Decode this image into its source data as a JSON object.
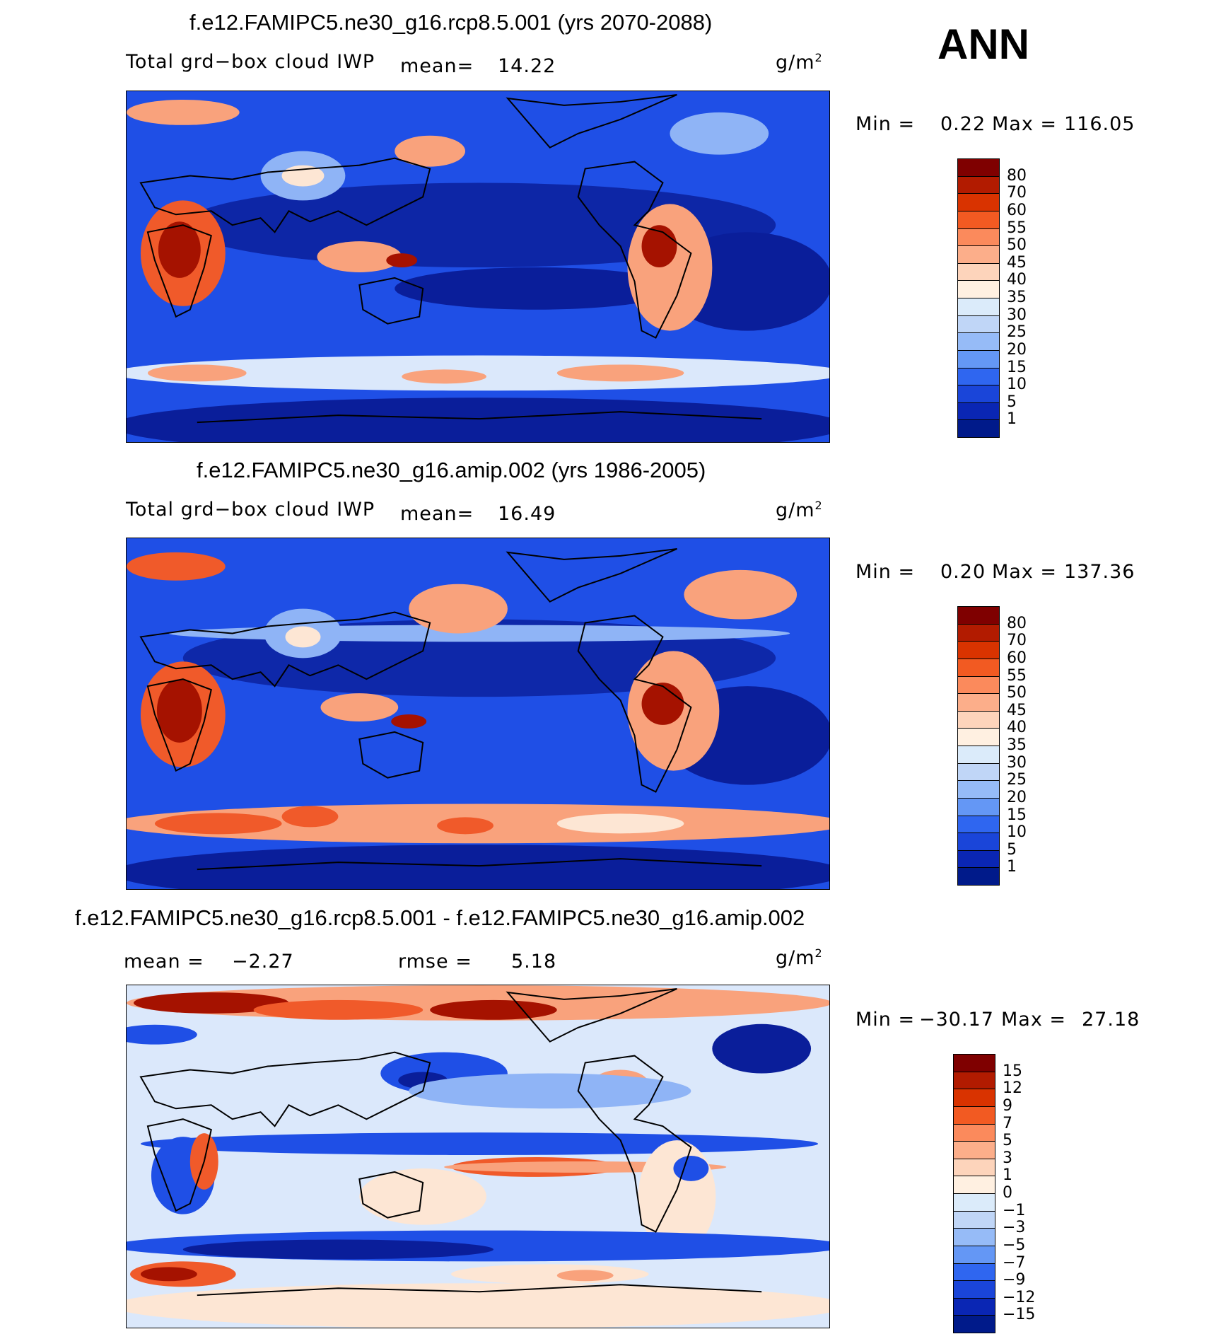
{
  "season": "ANN",
  "panels": [
    {
      "id": "rcp85",
      "title": "f.e12.FAMIPC5.ne30_g16.rcp8.5.001 (yrs 2070-2088)",
      "variable": "Total grd−box cloud IWP",
      "mean_label": "mean=",
      "mean_value": "14.22",
      "units": "g/m",
      "units_exp": "2",
      "min_label": "Min =",
      "min_value": "0.22",
      "max_label": "Max =",
      "max_value": "116.05",
      "colorbar": {
        "labels": [
          "80",
          "70",
          "60",
          "55",
          "50",
          "45",
          "40",
          "35",
          "30",
          "25",
          "20",
          "15",
          "10",
          "5",
          "1"
        ],
        "colors": [
          "#7f0000",
          "#b21b00",
          "#d93300",
          "#f25a22",
          "#fb8a5c",
          "#fcae8a",
          "#fdd4bb",
          "#fff0e1",
          "#dbebfa",
          "#c0d6f7",
          "#96bbf7",
          "#6497f5",
          "#2f66f0",
          "#1a45d9",
          "#0a26b4",
          "#001a8a"
        ]
      }
    },
    {
      "id": "amip",
      "title": "f.e12.FAMIPC5.ne30_g16.amip.002 (yrs 1986-2005)",
      "variable": "Total grd−box cloud IWP",
      "mean_label": "mean=",
      "mean_value": "16.49",
      "units": "g/m",
      "units_exp": "2",
      "min_label": "Min =",
      "min_value": "0.20",
      "max_label": "Max =",
      "max_value": "137.36",
      "colorbar": {
        "labels": [
          "80",
          "70",
          "60",
          "55",
          "50",
          "45",
          "40",
          "35",
          "30",
          "25",
          "20",
          "15",
          "10",
          "5",
          "1"
        ],
        "colors": [
          "#7f0000",
          "#b21b00",
          "#d93300",
          "#f25a22",
          "#fb8a5c",
          "#fcae8a",
          "#fdd4bb",
          "#fff0e1",
          "#dbebfa",
          "#c0d6f7",
          "#96bbf7",
          "#6497f5",
          "#2f66f0",
          "#1a45d9",
          "#0a26b4",
          "#001a8a"
        ]
      }
    },
    {
      "id": "diff",
      "title": "f.e12.FAMIPC5.ne30_g16.rcp8.5.001 - f.e12.FAMIPC5.ne30_g16.amip.002",
      "mean_label": "mean =",
      "mean_value": "−2.27",
      "rmse_label": "rmse =",
      "rmse_value": "5.18",
      "units": "g/m",
      "units_exp": "2",
      "min_label": "Min =",
      "min_value": "−30.17",
      "max_label": "Max =",
      "max_value": "27.18",
      "colorbar": {
        "labels": [
          "15",
          "12",
          "9",
          "7",
          "5",
          "3",
          "1",
          "0",
          "−1",
          "−3",
          "−5",
          "−7",
          "−9",
          "−12",
          "−15"
        ],
        "colors": [
          "#7f0000",
          "#b21b00",
          "#d93300",
          "#f25a22",
          "#fb8a5c",
          "#fcae8a",
          "#fdd4bb",
          "#fff0e1",
          "#dbebfa",
          "#c0d6f7",
          "#96bbf7",
          "#6497f5",
          "#2f66f0",
          "#1a45d9",
          "#0a26b4",
          "#001a8a"
        ]
      }
    }
  ],
  "map_colors": {
    "deep": "#0a1e9a",
    "mid": "#1f4fe6",
    "light": "#8fb4f6",
    "pale": "#dbe8fb",
    "cream": "#fde6d4",
    "salmon": "#f9a27c",
    "orange": "#f05a2a",
    "dark": "#a51200"
  }
}
